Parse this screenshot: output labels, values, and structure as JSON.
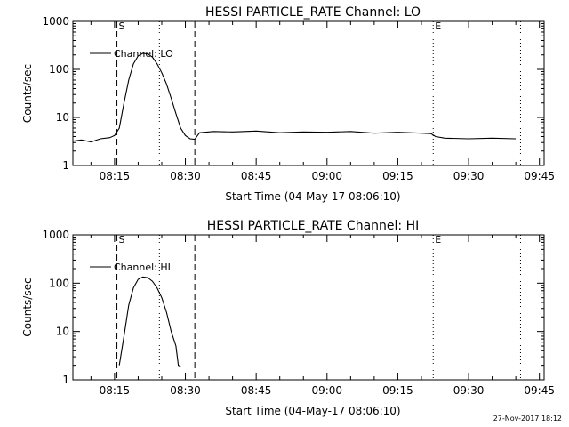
{
  "footer_stamp": "27-Nov-2017 18:12",
  "chart_data": [
    {
      "type": "line",
      "title": "HESSI PARTICLE_RATE Channel: LO",
      "xlabel": "Start Time (04-May-17 08:06:10)",
      "ylabel": "Counts/sec",
      "y_scale": "log",
      "ylim": [
        1,
        1000
      ],
      "xlim": [
        "08:06:10",
        "09:46:00"
      ],
      "x_ticks": [
        "08:15",
        "08:30",
        "08:45",
        "09:00",
        "09:15",
        "09:30",
        "09:45"
      ],
      "y_ticks": [
        "1",
        "10",
        "100",
        "1000"
      ],
      "legend": {
        "label": "Channel: LO",
        "placement": "top-left"
      },
      "markers": [
        {
          "label": "S",
          "time": "08:15:30",
          "style": "dashed"
        },
        {
          "label": "",
          "time": "08:24:30",
          "style": "dotted"
        },
        {
          "label": "",
          "time": "08:32:00",
          "style": "dashed"
        },
        {
          "label": "E",
          "time": "09:22:30",
          "style": "dotted"
        },
        {
          "label": "",
          "time": "09:41:00",
          "style": "dotted"
        }
      ],
      "series": [
        {
          "name": "Channel: LO",
          "points": [
            [
              "08:06:10",
              3.2
            ],
            [
              "08:08:00",
              3.4
            ],
            [
              "08:10:00",
              3.1
            ],
            [
              "08:12:00",
              3.6
            ],
            [
              "08:14:00",
              3.8
            ],
            [
              "08:15:00",
              4.2
            ],
            [
              "08:16:00",
              6
            ],
            [
              "08:17:00",
              20
            ],
            [
              "08:18:00",
              60
            ],
            [
              "08:19:00",
              130
            ],
            [
              "08:20:00",
              190
            ],
            [
              "08:21:00",
              215
            ],
            [
              "08:22:00",
              210
            ],
            [
              "08:23:00",
              180
            ],
            [
              "08:24:00",
              130
            ],
            [
              "08:25:00",
              85
            ],
            [
              "08:26:00",
              50
            ],
            [
              "08:27:00",
              25
            ],
            [
              "08:28:00",
              12
            ],
            [
              "08:29:00",
              6
            ],
            [
              "08:30:00",
              4.2
            ],
            [
              "08:31:00",
              3.6
            ],
            [
              "08:32:00",
              3.5
            ],
            [
              "08:33:00",
              4.8
            ],
            [
              "08:36:00",
              5.1
            ],
            [
              "08:40:00",
              5.0
            ],
            [
              "08:45:00",
              5.2
            ],
            [
              "08:50:00",
              4.8
            ],
            [
              "08:55:00",
              5.0
            ],
            [
              "09:00:00",
              4.9
            ],
            [
              "09:05:00",
              5.1
            ],
            [
              "09:10:00",
              4.7
            ],
            [
              "09:15:00",
              4.9
            ],
            [
              "09:20:00",
              4.7
            ],
            [
              "09:22:00",
              4.6
            ],
            [
              "09:23:00",
              4.0
            ],
            [
              "09:25:00",
              3.7
            ],
            [
              "09:30:00",
              3.6
            ],
            [
              "09:35:00",
              3.7
            ],
            [
              "09:40:00",
              3.6
            ]
          ]
        }
      ]
    },
    {
      "type": "line",
      "title": "HESSI PARTICLE_RATE Channel: HI",
      "xlabel": "Start Time (04-May-17 08:06:10)",
      "ylabel": "Counts/sec",
      "y_scale": "log",
      "ylim": [
        1,
        1000
      ],
      "xlim": [
        "08:06:10",
        "09:46:00"
      ],
      "x_ticks": [
        "08:15",
        "08:30",
        "08:45",
        "09:00",
        "09:15",
        "09:30",
        "09:45"
      ],
      "y_ticks": [
        "1",
        "10",
        "100",
        "1000"
      ],
      "legend": {
        "label": "Channel: HI",
        "placement": "top-left"
      },
      "markers": [
        {
          "label": "S",
          "time": "08:15:30",
          "style": "dashed"
        },
        {
          "label": "",
          "time": "08:24:30",
          "style": "dotted"
        },
        {
          "label": "",
          "time": "08:32:00",
          "style": "dashed"
        },
        {
          "label": "E",
          "time": "09:22:30",
          "style": "dotted"
        },
        {
          "label": "",
          "time": "09:41:00",
          "style": "dotted"
        }
      ],
      "series": [
        {
          "name": "Channel: HI",
          "points": [
            [
              "08:16:00",
              2.0
            ],
            [
              "08:17:00",
              8
            ],
            [
              "08:18:00",
              35
            ],
            [
              "08:19:00",
              80
            ],
            [
              "08:20:00",
              120
            ],
            [
              "08:21:00",
              135
            ],
            [
              "08:22:00",
              130
            ],
            [
              "08:23:00",
              110
            ],
            [
              "08:24:00",
              80
            ],
            [
              "08:25:00",
              50
            ],
            [
              "08:26:00",
              25
            ],
            [
              "08:27:00",
              10
            ],
            [
              "08:28:00",
              5
            ],
            [
              "08:28:30",
              2.0
            ],
            [
              "08:29:00",
              1.9
            ]
          ]
        }
      ]
    }
  ]
}
